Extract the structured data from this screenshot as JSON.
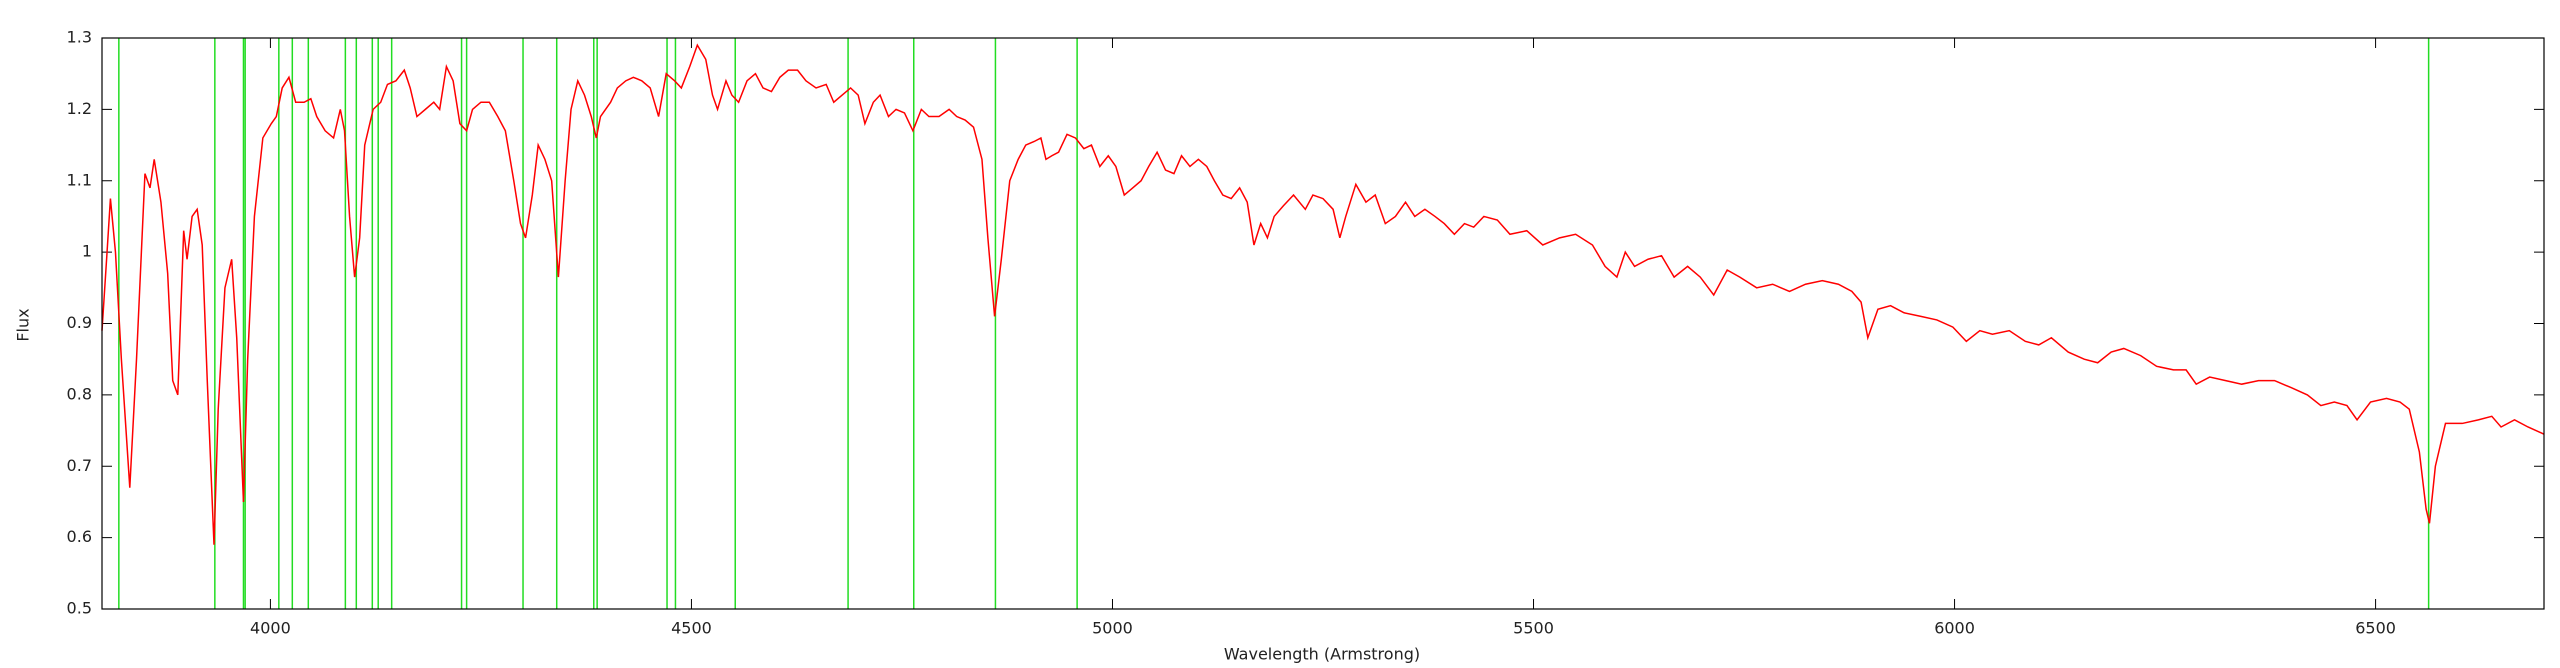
{
  "chart_data": {
    "type": "line",
    "x_label": "Wavelength (Armstrong)",
    "y_label": "Flux",
    "xlim": [
      3800,
      6700
    ],
    "ylim": [
      0.5,
      1.3
    ],
    "xticks": [
      4000,
      4500,
      5000,
      5500,
      6000,
      6500
    ],
    "yticks": [
      0.5,
      0.6,
      0.7,
      0.8,
      0.9,
      1,
      1.1,
      1.2,
      1.3
    ],
    "x": [
      3800,
      3806,
      3810,
      3816,
      3823,
      3833,
      3841,
      3851,
      3857,
      3862,
      3870,
      3878,
      3884,
      3890,
      3897,
      3901,
      3907,
      3913,
      3919,
      3925,
      3933,
      3938,
      3946,
      3954,
      3960,
      3968,
      3973,
      3981,
      3991,
      4001,
      4007,
      4014,
      4022,
      4030,
      4040,
      4048,
      4055,
      4065,
      4075,
      4083,
      4088,
      4094,
      4100,
      4106,
      4112,
      4122,
      4131,
      4139,
      4149,
      4159,
      4166,
      4174,
      4184,
      4194,
      4201,
      4209,
      4217,
      4225,
      4233,
      4240,
      4250,
      4260,
      4270,
      4279,
      4289,
      4297,
      4303,
      4311,
      4318,
      4326,
      4334,
      4342,
      4350,
      4357,
      4365,
      4373,
      4381,
      4387,
      4392,
      4404,
      4412,
      4422,
      4431,
      4441,
      4451,
      4461,
      4470,
      4480,
      4488,
      4498,
      4507,
      4517,
      4525,
      4531,
      4541,
      4548,
      4556,
      4566,
      4576,
      4585,
      4595,
      4605,
      4615,
      4626,
      4636,
      4648,
      4660,
      4669,
      4679,
      4689,
      4698,
      4706,
      4716,
      4724,
      4734,
      4743,
      4753,
      4763,
      4773,
      4782,
      4794,
      4806,
      4815,
      4825,
      4835,
      4845,
      4852,
      4860,
      4868,
      4878,
      4888,
      4897,
      4907,
      4915,
      4921,
      4928,
      4936,
      4946,
      4956,
      4966,
      4975,
      4985,
      4995,
      5004,
      5014,
      5024,
      5034,
      5043,
      5053,
      5063,
      5073,
      5082,
      5092,
      5102,
      5112,
      5121,
      5131,
      5141,
      5151,
      5160,
      5168,
      5176,
      5184,
      5192,
      5203,
      5215,
      5229,
      5238,
      5250,
      5262,
      5270,
      5277,
      5289,
      5301,
      5312,
      5324,
      5336,
      5348,
      5359,
      5371,
      5383,
      5394,
      5406,
      5418,
      5429,
      5441,
      5457,
      5472,
      5492,
      5511,
      5531,
      5550,
      5570,
      5585,
      5599,
      5609,
      5620,
      5636,
      5652,
      5667,
      5683,
      5698,
      5714,
      5730,
      5745,
      5765,
      5784,
      5804,
      5823,
      5843,
      5862,
      5878,
      5889,
      5897,
      5909,
      5924,
      5940,
      5960,
      5979,
      5998,
      6014,
      6030,
      6045,
      6065,
      6084,
      6100,
      6115,
      6135,
      6154,
      6170,
      6186,
      6201,
      6221,
      6240,
      6260,
      6275,
      6287,
      6303,
      6322,
      6341,
      6361,
      6380,
      6400,
      6419,
      6435,
      6451,
      6466,
      6478,
      6494,
      6513,
      6529,
      6540,
      6552,
      6560,
      6564,
      6571,
      6583,
      6603,
      6622,
      6638,
      6649,
      6665,
      6681,
      6700
    ],
    "series": [
      {
        "color": "#ff0000",
        "values": [
          0.89,
          1.0,
          1.075,
          1.0,
          0.85,
          0.67,
          0.85,
          1.11,
          1.09,
          1.13,
          1.07,
          0.97,
          0.82,
          0.8,
          1.03,
          0.99,
          1.05,
          1.06,
          1.01,
          0.82,
          0.59,
          0.78,
          0.95,
          0.99,
          0.88,
          0.65,
          0.85,
          1.05,
          1.16,
          1.18,
          1.19,
          1.23,
          1.245,
          1.21,
          1.21,
          1.215,
          1.19,
          1.17,
          1.16,
          1.2,
          1.17,
          1.05,
          0.965,
          1.02,
          1.15,
          1.2,
          1.21,
          1.235,
          1.24,
          1.255,
          1.23,
          1.19,
          1.2,
          1.21,
          1.2,
          1.26,
          1.24,
          1.18,
          1.17,
          1.2,
          1.21,
          1.21,
          1.19,
          1.17,
          1.1,
          1.04,
          1.02,
          1.08,
          1.15,
          1.13,
          1.1,
          0.965,
          1.1,
          1.2,
          1.24,
          1.22,
          1.19,
          1.16,
          1.19,
          1.21,
          1.23,
          1.24,
          1.245,
          1.24,
          1.23,
          1.19,
          1.25,
          1.24,
          1.23,
          1.26,
          1.29,
          1.27,
          1.22,
          1.2,
          1.24,
          1.22,
          1.21,
          1.24,
          1.25,
          1.23,
          1.225,
          1.245,
          1.255,
          1.255,
          1.24,
          1.23,
          1.235,
          1.21,
          1.22,
          1.23,
          1.22,
          1.18,
          1.21,
          1.22,
          1.19,
          1.2,
          1.195,
          1.17,
          1.2,
          1.19,
          1.19,
          1.2,
          1.19,
          1.185,
          1.175,
          1.13,
          1.02,
          0.91,
          0.99,
          1.1,
          1.13,
          1.15,
          1.155,
          1.16,
          1.13,
          1.135,
          1.14,
          1.165,
          1.16,
          1.145,
          1.15,
          1.12,
          1.135,
          1.12,
          1.08,
          1.09,
          1.1,
          1.12,
          1.14,
          1.115,
          1.11,
          1.135,
          1.12,
          1.13,
          1.12,
          1.1,
          1.08,
          1.075,
          1.09,
          1.07,
          1.01,
          1.04,
          1.02,
          1.05,
          1.065,
          1.08,
          1.06,
          1.08,
          1.075,
          1.06,
          1.02,
          1.05,
          1.095,
          1.07,
          1.08,
          1.04,
          1.05,
          1.07,
          1.05,
          1.06,
          1.05,
          1.04,
          1.025,
          1.04,
          1.035,
          1.05,
          1.045,
          1.025,
          1.03,
          1.01,
          1.02,
          1.025,
          1.01,
          0.98,
          0.965,
          1.0,
          0.98,
          0.99,
          0.995,
          0.965,
          0.98,
          0.965,
          0.94,
          0.975,
          0.965,
          0.95,
          0.955,
          0.945,
          0.955,
          0.96,
          0.955,
          0.945,
          0.93,
          0.88,
          0.92,
          0.925,
          0.915,
          0.91,
          0.905,
          0.895,
          0.875,
          0.89,
          0.885,
          0.89,
          0.875,
          0.87,
          0.88,
          0.86,
          0.85,
          0.845,
          0.86,
          0.865,
          0.855,
          0.84,
          0.835,
          0.835,
          0.815,
          0.825,
          0.82,
          0.815,
          0.82,
          0.82,
          0.81,
          0.8,
          0.785,
          0.79,
          0.785,
          0.765,
          0.79,
          0.795,
          0.79,
          0.78,
          0.72,
          0.64,
          0.62,
          0.7,
          0.76,
          0.76,
          0.765,
          0.77,
          0.755,
          0.765,
          0.755,
          0.745
        ]
      }
    ],
    "markers": {
      "color": "#22dd22",
      "values": [
        3820,
        3934,
        3968,
        3970,
        4010,
        4026,
        4045,
        4089,
        4102,
        4121,
        4128,
        4144,
        4227,
        4233,
        4300,
        4340,
        4384,
        4388,
        4471,
        4481,
        4552,
        4686,
        4764,
        4861,
        4958,
        6563
      ]
    }
  }
}
